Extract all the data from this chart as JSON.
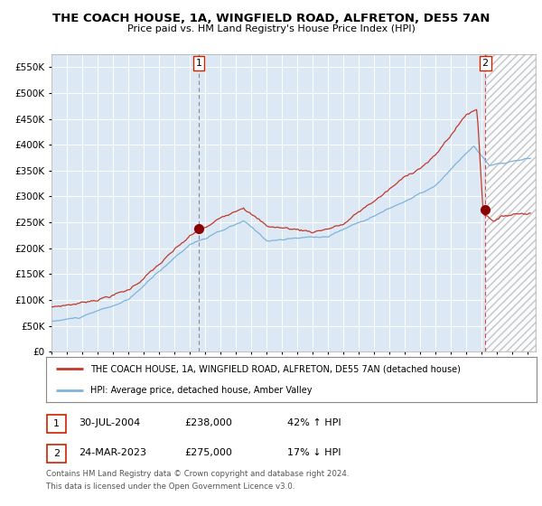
{
  "title": "THE COACH HOUSE, 1A, WINGFIELD ROAD, ALFRETON, DE55 7AN",
  "subtitle": "Price paid vs. HM Land Registry's House Price Index (HPI)",
  "ylim": [
    0,
    575000
  ],
  "yticks": [
    0,
    50000,
    100000,
    150000,
    200000,
    250000,
    300000,
    350000,
    400000,
    450000,
    500000,
    550000
  ],
  "ytick_labels": [
    "£0",
    "£50K",
    "£100K",
    "£150K",
    "£200K",
    "£250K",
    "£300K",
    "£350K",
    "£400K",
    "£450K",
    "£500K",
    "£550K"
  ],
  "hpi_color": "#7fb3d9",
  "property_color": "#c0392b",
  "marker_color": "#8b0000",
  "plot_bg_color": "#dce9f5",
  "grid_color": "#ffffff",
  "transaction1_date": 2004.58,
  "transaction1_price": 238000,
  "transaction2_date": 2023.23,
  "transaction2_price": 275000,
  "legend_property_label": "THE COACH HOUSE, 1A, WINGFIELD ROAD, ALFRETON, DE55 7AN (detached house)",
  "legend_hpi_label": "HPI: Average price, detached house, Amber Valley",
  "table_row1": [
    "1",
    "30-JUL-2004",
    "£238,000",
    "42% ↑ HPI"
  ],
  "table_row2": [
    "2",
    "24-MAR-2023",
    "£275,000",
    "17% ↓ HPI"
  ],
  "footnote1": "Contains HM Land Registry data © Crown copyright and database right 2024.",
  "footnote2": "This data is licensed under the Open Government Licence v3.0.",
  "xstart": 1995.0,
  "xend": 2026.5
}
